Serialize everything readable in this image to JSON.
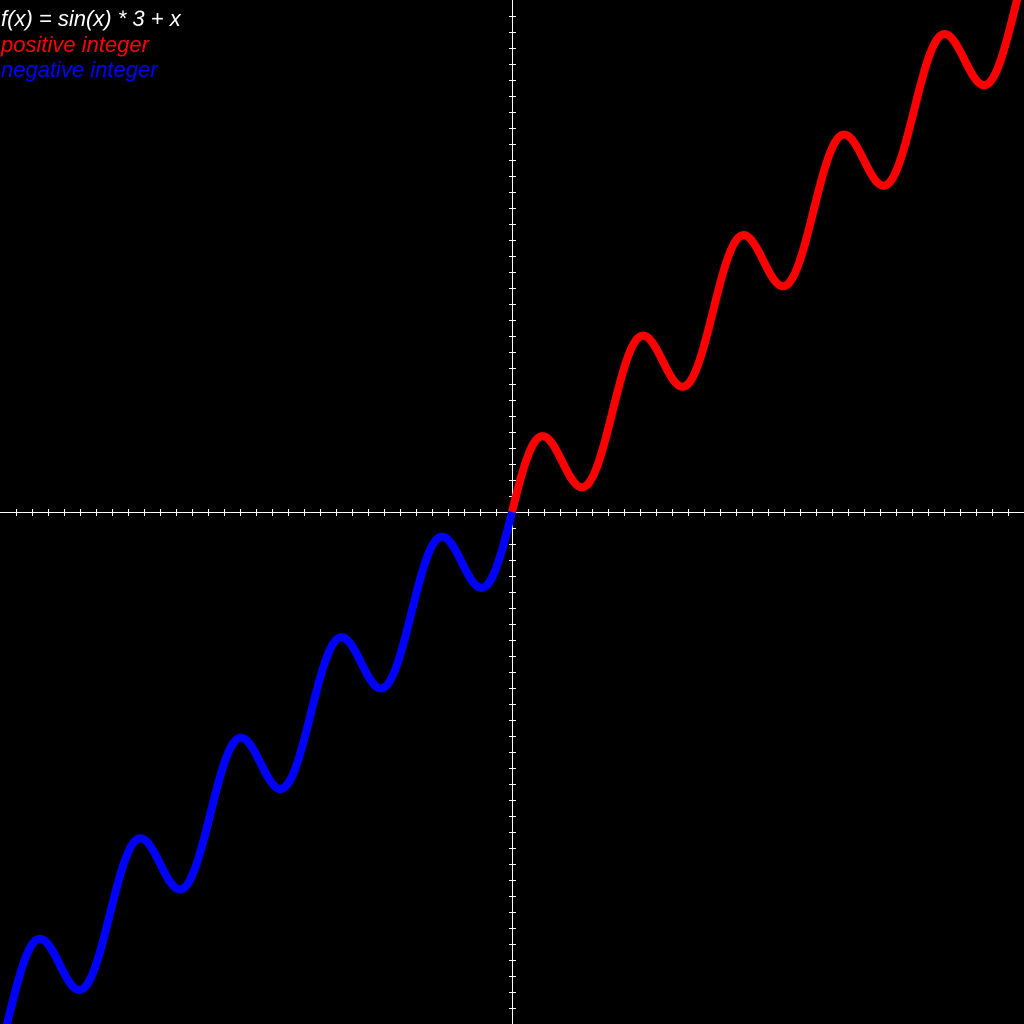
{
  "chart_data": {
    "type": "line",
    "title": "f(x) = sin(x) * 3 + x",
    "function": "sin(x) * 3 + x",
    "xlim": [
      -32,
      32
    ],
    "ylim": [
      -32,
      32
    ],
    "tick_step": 1,
    "grid": false,
    "legend_placement": "top-left",
    "series": [
      {
        "name": "positive integer",
        "color": "#ff0000",
        "domain": [
          0,
          32
        ]
      },
      {
        "name": "negative integer",
        "color": "#0000ff",
        "domain": [
          -32,
          0
        ]
      }
    ],
    "colors": {
      "background": "#000000",
      "axes": "#ffffff",
      "title": "#ffffff"
    }
  }
}
